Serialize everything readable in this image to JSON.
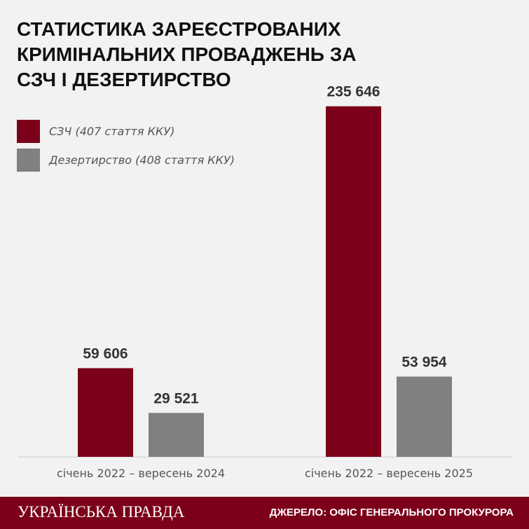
{
  "chart_data": {
    "type": "bar",
    "title": "СТАТИСТИКА ЗАРЕЄСТРОВАНИХ КРИМІНАЛЬНИХ ПРОВАДЖЕНЬ ЗА СЗЧ І ДЕЗЕРТИРСТВО",
    "categories": [
      "січень 2022 – вересень 2024",
      "січень 2022 – вересень 2025"
    ],
    "series": [
      {
        "name": "СЗЧ (407 стаття ККУ)",
        "color": "#7c0019",
        "values": [
          59606,
          235646
        ],
        "labels": [
          "59 606",
          "235 646"
        ]
      },
      {
        "name": "Дезертирство (408 стаття ККУ)",
        "color": "#808080",
        "values": [
          29521,
          53954
        ],
        "labels": [
          "29 521",
          "53 954"
        ]
      }
    ],
    "ylim": [
      0,
      260000
    ],
    "grid": false,
    "legend": "top-left"
  },
  "footer": {
    "logo": "УКРАЇНСЬКА ПРАВДА",
    "source": "ДЖЕРЕЛО: ОФІС ГЕНЕРАЛЬНОГО ПРОКУРОРА"
  }
}
